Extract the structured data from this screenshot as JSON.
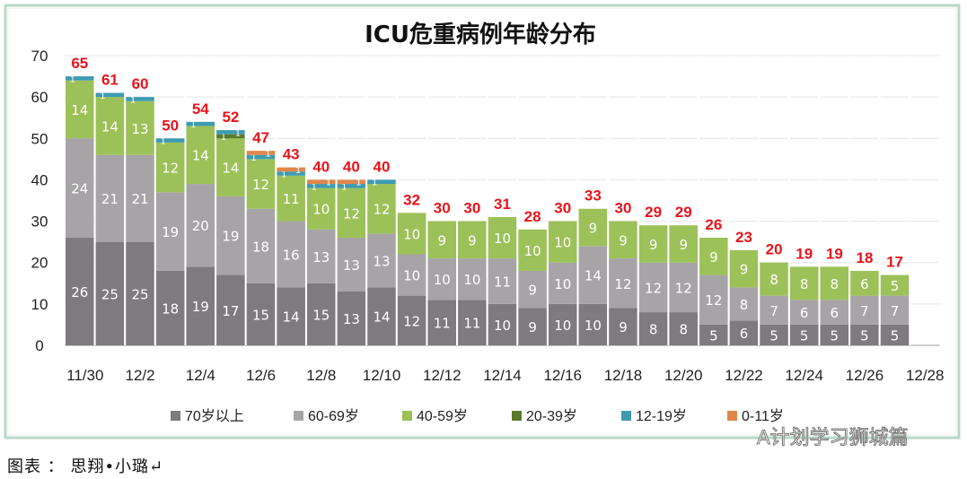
{
  "chart_data": {
    "type": "bar",
    "stacked": true,
    "title": "ICU危重病例年龄分布",
    "xlabel": "",
    "ylabel": "",
    "ylim": [
      0,
      70
    ],
    "yticks": [
      0,
      10,
      20,
      30,
      40,
      50,
      60,
      70
    ],
    "grid": true,
    "legend_position": "bottom",
    "categories": [
      "11/30",
      "12/1",
      "12/2",
      "12/3",
      "12/4",
      "12/5",
      "12/6",
      "12/7",
      "12/8",
      "12/9",
      "12/10",
      "12/11",
      "12/12",
      "12/13",
      "12/14",
      "12/15",
      "12/16",
      "12/17",
      "12/18",
      "12/19",
      "12/20",
      "12/21",
      "12/22",
      "12/23",
      "12/24",
      "12/25",
      "12/26",
      "12/27",
      "12/28"
    ],
    "xtick_labels": [
      "11/30",
      "12/2",
      "12/4",
      "12/6",
      "12/8",
      "12/10",
      "12/12",
      "12/14",
      "12/16",
      "12/18",
      "12/20",
      "12/22",
      "12/24",
      "12/26",
      "12/28"
    ],
    "series": [
      {
        "name": "70岁以上",
        "color": "#7f7a7d",
        "values": [
          26,
          25,
          25,
          18,
          19,
          17,
          15,
          14,
          15,
          13,
          14,
          12,
          11,
          11,
          10,
          9,
          10,
          10,
          9,
          8,
          8,
          5,
          6,
          5,
          5,
          5,
          5,
          5,
          null
        ]
      },
      {
        "name": "60-69岁",
        "color": "#a7a4a7",
        "values": [
          24,
          21,
          21,
          19,
          20,
          19,
          18,
          16,
          13,
          13,
          13,
          10,
          10,
          10,
          11,
          9,
          10,
          14,
          12,
          12,
          12,
          12,
          8,
          7,
          6,
          6,
          7,
          7,
          null
        ]
      },
      {
        "name": "40-59岁",
        "color": "#9cc158",
        "values": [
          14,
          14,
          13,
          12,
          14,
          14,
          12,
          11,
          10,
          12,
          12,
          10,
          9,
          9,
          10,
          10,
          10,
          9,
          9,
          9,
          9,
          9,
          9,
          8,
          8,
          8,
          6,
          5,
          null
        ]
      },
      {
        "name": "20-39岁",
        "color": "#5b7b2c",
        "values": [
          0,
          0,
          0,
          0,
          0,
          1,
          0,
          0,
          0,
          0,
          0,
          0,
          0,
          0,
          0,
          0,
          0,
          0,
          0,
          0,
          0,
          0,
          0,
          0,
          0,
          0,
          0,
          0,
          null
        ]
      },
      {
        "name": "12-19岁",
        "color": "#3e9bb1",
        "values": [
          1,
          1,
          1,
          1,
          1,
          1,
          1,
          1,
          1,
          1,
          1,
          0,
          0,
          0,
          0,
          0,
          0,
          0,
          0,
          0,
          0,
          0,
          0,
          0,
          0,
          0,
          0,
          0,
          null
        ]
      },
      {
        "name": "0-11岁",
        "color": "#e0874a",
        "values": [
          0,
          0,
          0,
          0,
          0,
          0,
          1,
          1,
          1,
          1,
          0,
          0,
          0,
          0,
          0,
          0,
          0,
          0,
          0,
          0,
          0,
          0,
          0,
          0,
          0,
          0,
          0,
          0,
          null
        ]
      }
    ],
    "totals": [
      65,
      61,
      60,
      50,
      54,
      52,
      47,
      43,
      40,
      40,
      40,
      32,
      30,
      30,
      31,
      28,
      30,
      33,
      30,
      29,
      29,
      26,
      23,
      20,
      19,
      19,
      18,
      17,
      null
    ],
    "total_label_color": "#e8141b"
  },
  "caption": "图表 ： 思翔•小璐↵",
  "watermark": "A计划学习狮城篇"
}
